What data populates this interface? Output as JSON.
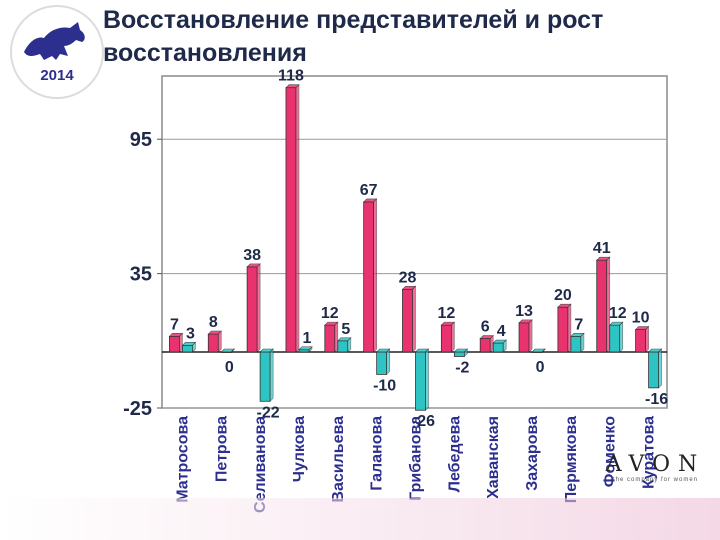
{
  "title": "Восстановление представителей и рост восстановления",
  "brand": {
    "logo_year": "2014",
    "avon_text": "AVON",
    "avon_tagline": "the company for women"
  },
  "colors": {
    "series1": "#e8336f",
    "series2": "#2ec4c4",
    "plot_border": "#8a8a8a",
    "text": "#1f2a4a"
  },
  "chart_data": {
    "type": "bar",
    "categories": [
      "Матросова",
      "Петрова",
      "Селиванова",
      "Чулкова",
      "Васильева",
      "Галанова",
      "Грибанова",
      "Лебедева",
      "Хаванская",
      "Захарова",
      "Пермякова",
      "Фоменко",
      "Куратова"
    ],
    "series": [
      {
        "values": [
          7,
          8,
          38,
          118,
          12,
          67,
          28,
          12,
          6,
          13,
          20,
          41,
          10
        ],
        "labels": [
          "7",
          "8",
          "38",
          "118",
          "12",
          "67",
          "28",
          "12",
          "6",
          "13",
          "20",
          "41",
          "10"
        ]
      },
      {
        "values": [
          3,
          0,
          -22,
          1,
          5,
          -10,
          -26,
          -2,
          4,
          0,
          7,
          12,
          -16
        ],
        "labels": [
          "3",
          "0",
          "-22",
          "1",
          "5",
          "-10",
          "-26",
          "-2",
          "4",
          "0",
          "7",
          "12",
          "-16"
        ]
      }
    ],
    "yticks": [
      "95",
      "35",
      "-25"
    ],
    "ylim": [
      -25,
      118
    ],
    "grid": true,
    "legend": "none"
  }
}
